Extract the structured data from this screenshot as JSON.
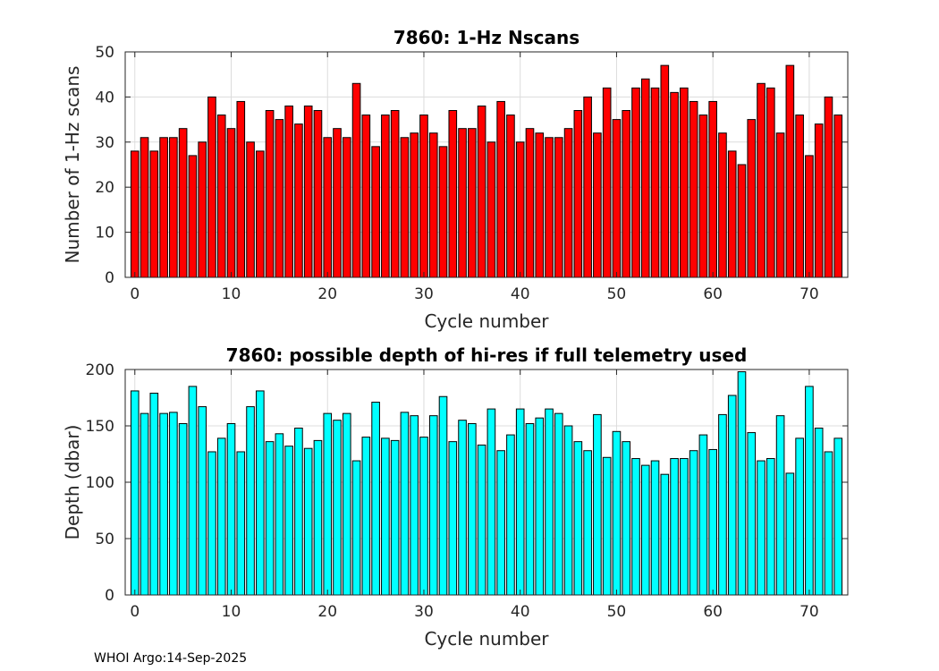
{
  "chart_data": [
    {
      "type": "bar",
      "title": "7860: 1-Hz Nscans",
      "xlabel": "Cycle number",
      "ylabel": "Number of 1-Hz scans",
      "xlim": [
        -1,
        74
      ],
      "ylim": [
        0,
        50
      ],
      "xticks": [
        0,
        10,
        20,
        30,
        40,
        50,
        60,
        70
      ],
      "yticks": [
        0,
        10,
        20,
        30,
        40,
        50
      ],
      "grid": true,
      "bar_color": "#ff0000",
      "x": [
        0,
        1,
        2,
        3,
        4,
        5,
        6,
        7,
        8,
        9,
        10,
        11,
        12,
        13,
        14,
        15,
        16,
        17,
        18,
        19,
        20,
        21,
        22,
        23,
        24,
        25,
        26,
        27,
        28,
        29,
        30,
        31,
        32,
        33,
        34,
        35,
        36,
        37,
        38,
        39,
        40,
        41,
        42,
        43,
        44,
        45,
        46,
        47,
        48,
        49,
        50,
        51,
        52,
        53,
        54,
        55,
        56,
        57,
        58,
        59,
        60,
        61,
        62,
        63,
        64,
        65,
        66,
        67,
        68,
        69,
        70,
        71,
        72,
        73
      ],
      "values": [
        28,
        31,
        28,
        31,
        31,
        33,
        27,
        30,
        40,
        36,
        33,
        39,
        30,
        28,
        37,
        35,
        38,
        34,
        38,
        37,
        31,
        33,
        31,
        43,
        36,
        29,
        36,
        37,
        31,
        32,
        36,
        32,
        29,
        37,
        33,
        33,
        38,
        30,
        39,
        36,
        30,
        33,
        32,
        31,
        31,
        33,
        37,
        40,
        32,
        42,
        35,
        37,
        42,
        44,
        42,
        47,
        41,
        42,
        39,
        36,
        39,
        32,
        28,
        25,
        35,
        43,
        42,
        32,
        47,
        36,
        27,
        34,
        40,
        36
      ]
    },
    {
      "type": "bar",
      "title": "7860: possible depth of hi-res if full telemetry used",
      "xlabel": "Cycle number",
      "ylabel": "Depth (dbar)",
      "xlim": [
        -1,
        74
      ],
      "ylim": [
        0,
        200
      ],
      "xticks": [
        0,
        10,
        20,
        30,
        40,
        50,
        60,
        70
      ],
      "yticks": [
        0,
        50,
        100,
        150,
        200
      ],
      "grid": true,
      "bar_color": "#00ffff",
      "x": [
        0,
        1,
        2,
        3,
        4,
        5,
        6,
        7,
        8,
        9,
        10,
        11,
        12,
        13,
        14,
        15,
        16,
        17,
        18,
        19,
        20,
        21,
        22,
        23,
        24,
        25,
        26,
        27,
        28,
        29,
        30,
        31,
        32,
        33,
        34,
        35,
        36,
        37,
        38,
        39,
        40,
        41,
        42,
        43,
        44,
        45,
        46,
        47,
        48,
        49,
        50,
        51,
        52,
        53,
        54,
        55,
        56,
        57,
        58,
        59,
        60,
        61,
        62,
        63,
        64,
        65,
        66,
        67,
        68,
        69,
        70,
        71,
        72,
        73
      ],
      "values": [
        181,
        161,
        179,
        161,
        162,
        152,
        185,
        167,
        127,
        139,
        152,
        127,
        167,
        181,
        136,
        143,
        132,
        148,
        130,
        137,
        161,
        155,
        161,
        119,
        140,
        171,
        139,
        137,
        162,
        159,
        140,
        159,
        176,
        136,
        155,
        152,
        133,
        165,
        128,
        142,
        165,
        152,
        157,
        165,
        161,
        150,
        136,
        128,
        160,
        122,
        145,
        136,
        121,
        115,
        119,
        107,
        121,
        121,
        128,
        142,
        129,
        160,
        177,
        198,
        144,
        119,
        121,
        159,
        108,
        139,
        185,
        148,
        127,
        139
      ]
    }
  ],
  "footer": {
    "text": "WHOI Argo:14-Sep-2025"
  }
}
